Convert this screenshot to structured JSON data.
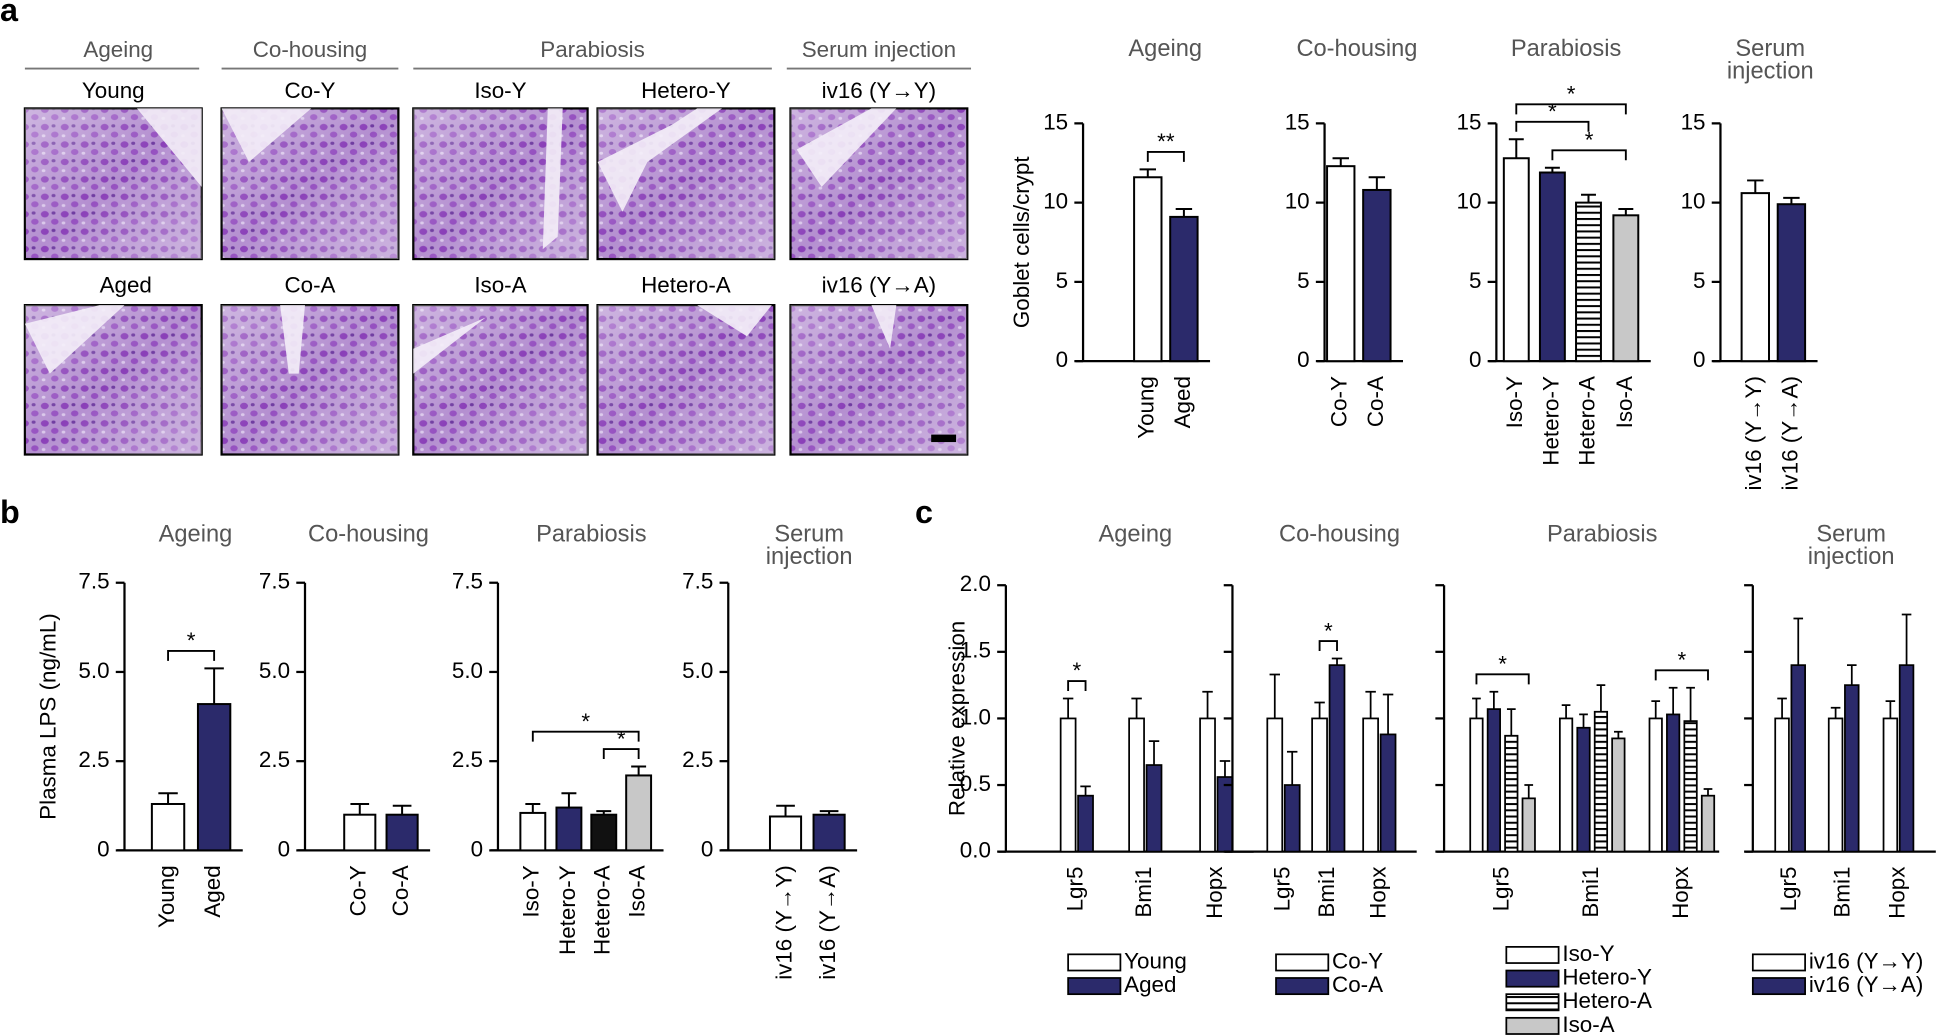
{
  "panel_labels": [
    "a",
    "b",
    "c"
  ],
  "micrographs": {
    "groups": [
      "Ageing",
      "Co-housing",
      "Parabiosis",
      "Serum injection"
    ],
    "top_row": [
      "Young",
      "Co-Y",
      "Iso-Y",
      "Hetero-Y",
      "iv16 (Y→Y)"
    ],
    "bottom_row": [
      "Aged",
      "Co-A",
      "Iso-A",
      "Hetero-A",
      "iv16 (Y→A)"
    ]
  },
  "chart_data": [
    {
      "type": "bar",
      "title": "Ageing",
      "ylabel": "Goblet cells/crypt",
      "categories": [
        "Young",
        "Aged"
      ],
      "values": [
        11.6,
        9.1
      ],
      "errors": [
        0.5,
        0.5
      ],
      "colors": [
        "#ffffff",
        "#2b2a6b"
      ],
      "ylim": [
        0,
        15
      ],
      "yticks": [
        0,
        5,
        10,
        15
      ],
      "annotations": [
        {
          "text": "**",
          "from": 0,
          "to": 1
        }
      ]
    },
    {
      "type": "bar",
      "title": "Co-housing",
      "categories": [
        "Co-Y",
        "Co-A"
      ],
      "values": [
        12.3,
        10.8
      ],
      "errors": [
        0.5,
        0.8
      ],
      "colors": [
        "#ffffff",
        "#2b2a6b"
      ],
      "ylim": [
        0,
        15
      ],
      "yticks": [
        0,
        5,
        10,
        15
      ]
    },
    {
      "type": "bar",
      "title": "Parabiosis",
      "categories": [
        "Iso-Y",
        "Hetero-Y",
        "Hetero-A",
        "Iso-A"
      ],
      "values": [
        12.8,
        11.9,
        10.0,
        9.2
      ],
      "errors": [
        1.2,
        0.3,
        0.5,
        0.4
      ],
      "colors": [
        "#ffffff",
        "#2b2a6b",
        "#ffffff",
        "#c8c8c8"
      ],
      "patterns": [
        "solid",
        "solid",
        "stripes",
        "solid"
      ],
      "ylim": [
        0,
        15
      ],
      "yticks": [
        0,
        5,
        10,
        15
      ],
      "annotations": [
        {
          "text": "*",
          "from": 1,
          "to": 3
        },
        {
          "text": "*",
          "from": 0,
          "to": 2
        },
        {
          "text": "*",
          "from": 0,
          "to": 3
        }
      ]
    },
    {
      "type": "bar",
      "title": "Serum injection",
      "categories": [
        "iv16 (Y→Y)",
        "iv16 (Y→A)"
      ],
      "values": [
        10.6,
        9.9
      ],
      "errors": [
        0.8,
        0.4
      ],
      "colors": [
        "#ffffff",
        "#2b2a6b"
      ],
      "ylim": [
        0,
        15
      ],
      "yticks": [
        0,
        5,
        10,
        15
      ]
    },
    {
      "type": "bar",
      "title": "Ageing",
      "ylabel": "Plasma LPS (ng/mL)",
      "categories": [
        "Young",
        "Aged"
      ],
      "values": [
        1.3,
        4.1
      ],
      "errors": [
        0.3,
        1.0
      ],
      "colors": [
        "#ffffff",
        "#2b2a6b"
      ],
      "ylim": [
        0,
        7.5
      ],
      "yticks": [
        0,
        2.5,
        {
          "value": 5,
          "label": "5.0"
        },
        7.5
      ],
      "annotations": [
        {
          "text": "*",
          "from": 0,
          "to": 1
        }
      ]
    },
    {
      "type": "bar",
      "title": "Co-housing",
      "categories": [
        "Co-Y",
        "Co-A"
      ],
      "values": [
        1.0,
        1.0
      ],
      "errors": [
        0.3,
        0.25
      ],
      "colors": [
        "#ffffff",
        "#2b2a6b"
      ],
      "ylim": [
        0,
        7.5
      ],
      "yticks": [
        0,
        2.5,
        {
          "value": 5,
          "label": "5.0"
        },
        7.5
      ]
    },
    {
      "type": "bar",
      "title": "Parabiosis",
      "categories": [
        "Iso-Y",
        "Hetero-Y",
        "Hetero-A",
        "Iso-A"
      ],
      "values": [
        1.05,
        1.2,
        1.0,
        2.1
      ],
      "errors": [
        0.25,
        0.4,
        0.1,
        0.25
      ],
      "colors": [
        "#ffffff",
        "#2b2a6b",
        "#111111",
        "#c8c8c8"
      ],
      "ylim": [
        0,
        7.5
      ],
      "yticks": [
        0,
        2.5,
        {
          "value": 5,
          "label": "5.0"
        },
        7.5
      ],
      "annotations": [
        {
          "text": "*",
          "from": 2,
          "to": 3
        },
        {
          "text": "*",
          "from": 0,
          "to": 3
        }
      ]
    },
    {
      "type": "bar",
      "title": "Serum injection",
      "categories": [
        "iv16 (Y→Y)",
        "iv16 (Y→A)"
      ],
      "values": [
        0.95,
        1.0
      ],
      "errors": [
        0.3,
        0.1
      ],
      "colors": [
        "#ffffff",
        "#2b2a6b"
      ],
      "ylim": [
        0,
        7.5
      ],
      "yticks": [
        0,
        2.5,
        {
          "value": 5,
          "label": "5.0"
        },
        7.5
      ]
    },
    {
      "type": "grouped_bar",
      "title": "Ageing",
      "ylabel": "Relative expression",
      "categories": [
        "Lgr5",
        "Bmi1",
        "Hopx"
      ],
      "series": [
        {
          "name": "Young",
          "color": "#ffffff",
          "values": [
            1.0,
            1.0,
            1.0
          ],
          "errors": [
            0.15,
            0.15,
            0.2
          ]
        },
        {
          "name": "Aged",
          "color": "#2b2a6b",
          "values": [
            0.42,
            0.65,
            0.56
          ],
          "errors": [
            0.07,
            0.18,
            0.12
          ]
        }
      ],
      "ylim": [
        0,
        2
      ],
      "yticks": [
        {
          "value": 0,
          "label": "0.0"
        },
        {
          "value": 0.5,
          "label": "0.5"
        },
        {
          "value": 1,
          "label": "1.0"
        },
        {
          "value": 1.5,
          "label": "1.5"
        },
        {
          "value": 2,
          "label": "2.0"
        }
      ],
      "annotations": [
        {
          "text": "*",
          "category": 0,
          "from": 0,
          "to": 1
        }
      ]
    },
    {
      "type": "grouped_bar",
      "title": "Co-housing",
      "categories": [
        "Lgr5",
        "Bmi1",
        "Hopx"
      ],
      "series": [
        {
          "name": "Co-Y",
          "color": "#ffffff",
          "values": [
            1.0,
            1.0,
            1.0
          ],
          "errors": [
            0.33,
            0.12,
            0.2
          ]
        },
        {
          "name": "Co-A",
          "color": "#2b2a6b",
          "values": [
            0.5,
            1.4,
            0.88
          ],
          "errors": [
            0.25,
            0.05,
            0.3
          ]
        }
      ],
      "ylim": [
        0,
        2
      ],
      "yticks": [
        0,
        0.5,
        1,
        1.5,
        2
      ],
      "ytick_labels": false,
      "annotations": [
        {
          "text": "*",
          "category": 1,
          "from": 0,
          "to": 1
        }
      ]
    },
    {
      "type": "grouped_bar",
      "title": "Parabiosis",
      "categories": [
        "Lgr5",
        "Bmi1",
        "Hopx"
      ],
      "series": [
        {
          "name": "Iso-Y",
          "color": "#ffffff",
          "values": [
            1.0,
            1.0,
            1.0
          ],
          "errors": [
            0.15,
            0.1,
            0.13
          ]
        },
        {
          "name": "Hetero-Y",
          "color": "#2b2a6b",
          "values": [
            1.07,
            0.93,
            1.03
          ],
          "errors": [
            0.13,
            0.1,
            0.2
          ]
        },
        {
          "name": "Hetero-A",
          "color": "#ffffff",
          "pattern": "stripes",
          "values": [
            0.87,
            1.05,
            0.98
          ],
          "errors": [
            0.2,
            0.2,
            0.25
          ]
        },
        {
          "name": "Iso-A",
          "color": "#c8c8c8",
          "values": [
            0.4,
            0.85,
            0.42
          ],
          "errors": [
            0.1,
            0.05,
            0.05
          ]
        }
      ],
      "ylim": [
        0,
        2
      ],
      "yticks": [
        0,
        0.5,
        1,
        1.5,
        2
      ],
      "ytick_labels": false,
      "annotations": [
        {
          "text": "*",
          "category": 0,
          "from": 0,
          "to": 3
        },
        {
          "text": "*",
          "category": 2,
          "from": 0,
          "to": 3
        }
      ]
    },
    {
      "type": "grouped_bar",
      "title": "Serum injection",
      "categories": [
        "Lgr5",
        "Bmi1",
        "Hopx"
      ],
      "series": [
        {
          "name": "iv16 (Y→Y)",
          "color": "#ffffff",
          "values": [
            1.0,
            1.0,
            1.0
          ],
          "errors": [
            0.15,
            0.08,
            0.13
          ]
        },
        {
          "name": "iv16 (Y→A)",
          "color": "#2b2a6b",
          "values": [
            1.4,
            1.25,
            1.4
          ],
          "errors": [
            0.35,
            0.15,
            0.38
          ]
        }
      ],
      "ylim": [
        0,
        2
      ],
      "yticks": [
        0,
        0.5,
        1,
        1.5,
        2
      ],
      "ytick_labels": false
    }
  ]
}
